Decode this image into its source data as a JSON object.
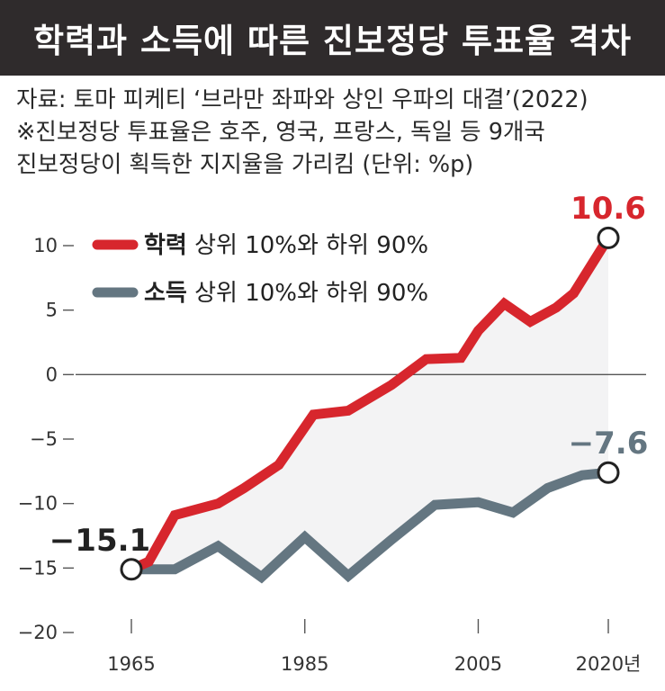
{
  "header": {
    "title": "학력과 소득에 따른 진보정당 투표율 격차"
  },
  "notes": {
    "source": "자료: 토마 피케티 ‘브라만 좌파와 상인 우파의 대결’(2022)",
    "note1": "※진보정당 투표율은 호주, 영국, 프랑스, 독일 등 9개국",
    "note2": "진보정당이 획득한 지지율을 가리킴 (단위: %p)"
  },
  "colors": {
    "education": "#d7262d",
    "income": "#647681",
    "fill": "#f3f3f4"
  },
  "chart_data": {
    "type": "line",
    "x_ticks": [
      {
        "value": 1965,
        "label": "1965"
      },
      {
        "value": 1985,
        "label": "1985"
      },
      {
        "value": 2005,
        "label": "2005"
      },
      {
        "value": 2020,
        "label": "2020년"
      }
    ],
    "y_ticks": [
      {
        "value": 10,
        "label": "10"
      },
      {
        "value": 5,
        "label": "5"
      },
      {
        "value": 0,
        "label": "0"
      },
      {
        "value": -5,
        "label": "−5"
      },
      {
        "value": -10,
        "label": "−10"
      },
      {
        "value": -15,
        "label": "−15"
      },
      {
        "value": -20,
        "label": "−20"
      }
    ],
    "xlim": [
      1965,
      2020
    ],
    "ylim": [
      -20,
      10
    ],
    "series": [
      {
        "name": "학력",
        "legend_suffix": "상위 10%와 하위 90%",
        "color": "#d7262d",
        "x": [
          1965,
          1967,
          1970,
          1975,
          1978,
          1982,
          1986,
          1990,
          1995,
          1999,
          2003,
          2005,
          2008,
          2011,
          2014,
          2016,
          2020
        ],
        "y": [
          -15.1,
          -14.5,
          -10.9,
          -10.0,
          -8.8,
          -7.0,
          -3.1,
          -2.8,
          -0.8,
          1.2,
          1.3,
          3.4,
          5.5,
          4.1,
          5.2,
          6.3,
          10.6
        ]
      },
      {
        "name": "소득",
        "legend_suffix": "상위 10%와 하위 90%",
        "color": "#647681",
        "x": [
          1965,
          1970,
          1975,
          1980,
          1985,
          1990,
          1995,
          2000,
          2005,
          2009,
          2013,
          2017,
          2020
        ],
        "y": [
          -15.1,
          -15.1,
          -13.3,
          -15.7,
          -12.6,
          -15.6,
          -12.8,
          -10.1,
          -9.9,
          -10.7,
          -8.8,
          -7.8,
          -7.6
        ]
      }
    ],
    "annotations": {
      "start": "−15.1",
      "edu_end": "10.6",
      "inc_end": "−7.6"
    },
    "grid": false,
    "legend": "top-left"
  }
}
